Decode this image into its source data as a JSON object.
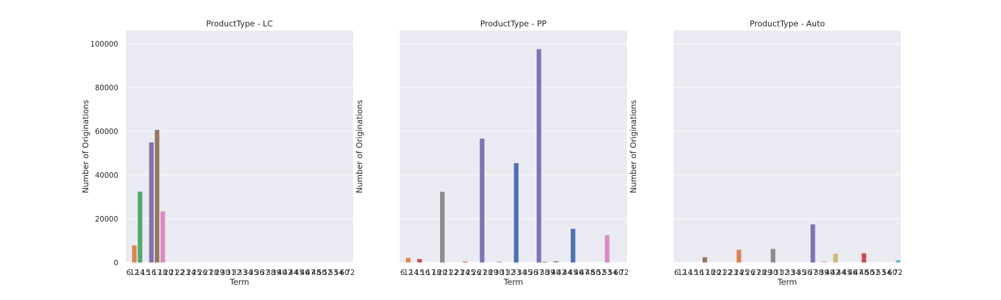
{
  "chart_data": {
    "type": "bar",
    "categories": [
      "6",
      "12",
      "14",
      "15",
      "16",
      "17",
      "18",
      "20",
      "21",
      "22",
      "23",
      "24",
      "25",
      "26",
      "27",
      "28",
      "29",
      "30",
      "31",
      "32",
      "33",
      "34",
      "35",
      "36",
      "37",
      "38",
      "39",
      "40",
      "42",
      "44",
      "45",
      "46",
      "47",
      "48",
      "50",
      "52",
      "53",
      "54",
      "60",
      "72"
    ],
    "ylim": [
      0,
      106000
    ],
    "yticks": [
      0,
      20000,
      40000,
      60000,
      80000,
      100000
    ],
    "grid": true,
    "sharey": true,
    "palette": [
      "#4c72b0",
      "#dd8452",
      "#55a868",
      "#c44e52",
      "#8172b3",
      "#937860",
      "#da8bc3",
      "#8c8c8c",
      "#ccb974",
      "#64b5cd"
    ],
    "panels": [
      {
        "title": "ProductType - LC",
        "xlabel": "Term",
        "ylabel": "Number of Originations",
        "values": [
          0,
          7800,
          32400,
          0,
          54900,
          60600,
          23300,
          0,
          0,
          0,
          0,
          0,
          0,
          0,
          0,
          0,
          0,
          0,
          0,
          0,
          0,
          0,
          0,
          0,
          0,
          0,
          0,
          0,
          0,
          0,
          0,
          0,
          0,
          0,
          0,
          0,
          0,
          0,
          0,
          0
        ]
      },
      {
        "title": "ProductType - PP",
        "xlabel": "Term",
        "ylabel": "Number of Originations",
        "values": [
          0,
          2100,
          0,
          1600,
          0,
          0,
          0,
          32300,
          0,
          0,
          0,
          500,
          0,
          0,
          56600,
          0,
          0,
          300,
          0,
          0,
          45400,
          0,
          0,
          0,
          97500,
          300,
          0,
          600,
          0,
          0,
          15400,
          0,
          0,
          0,
          0,
          0,
          12500,
          0,
          0,
          0
        ]
      },
      {
        "title": "ProductType - Auto",
        "xlabel": "Term",
        "ylabel": "Number of Originations",
        "values": [
          0,
          0,
          0,
          0,
          0,
          2400,
          0,
          0,
          0,
          0,
          0,
          5800,
          0,
          0,
          0,
          0,
          0,
          6200,
          0,
          0,
          0,
          0,
          0,
          0,
          17400,
          0,
          300,
          0,
          4000,
          0,
          0,
          0,
          0,
          4200,
          0,
          0,
          0,
          0,
          0,
          1000
        ]
      }
    ]
  }
}
